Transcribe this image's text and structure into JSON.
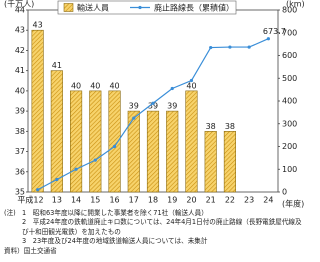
{
  "chart_data": {
    "type": "bar",
    "y_label": "(千万人)",
    "y2_label": "(km)",
    "x_label": "(年度)",
    "categories": [
      "平成12",
      "13",
      "14",
      "15",
      "16",
      "17",
      "18",
      "19",
      "20",
      "21",
      "22",
      "23",
      "24"
    ],
    "series": [
      {
        "name": "輸送人員",
        "type": "bar",
        "color": "#f2bf3a",
        "values": [
          43,
          41,
          40,
          40,
          40,
          39,
          39,
          39,
          40,
          38,
          38,
          null,
          null
        ]
      },
      {
        "name": "廃止路線長（累積値）",
        "type": "line",
        "axis": "y2",
        "color": "#3a8ed8",
        "values": [
          10,
          55,
          100,
          140,
          200,
          325,
          390,
          455,
          490,
          635,
          637,
          637,
          673.7
        ]
      }
    ],
    "ylim": [
      35,
      44
    ],
    "yticks": [
      35,
      36,
      37,
      38,
      39,
      40,
      41,
      42,
      43,
      44
    ],
    "y2lim": [
      0,
      800
    ],
    "y2ticks": [
      0,
      100,
      200,
      300,
      400,
      500,
      600,
      700,
      800
    ],
    "grid": false
  },
  "notes": {
    "label": "(注)",
    "items": [
      "1　昭和63年度以降に開業した事業者を除く71社（輸送人員）",
      "2　平成24年度の鉄軌道廃止キロ数については、24年4月1日付の廃止路線（長野電鉄屋代線及び十和田観光電鉄）を加えたもの",
      "3　23年度及び24年度の地域鉄道輸送人員については、未集計"
    ],
    "source": "資料）国土交通省"
  }
}
